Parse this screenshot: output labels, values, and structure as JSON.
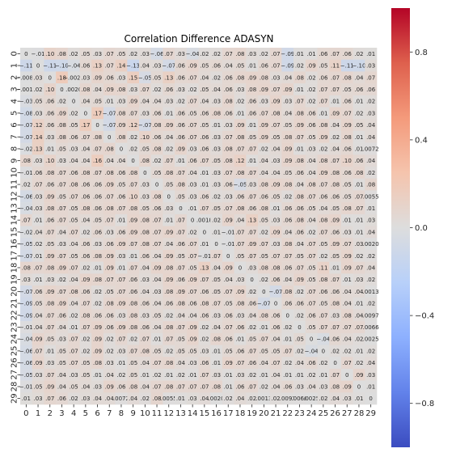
{
  "chart_data": {
    "type": "heatmap",
    "title": "Correlation Difference ADASYN",
    "xlabel": "",
    "ylabel": "",
    "x_categories": [
      "0",
      "1",
      "2",
      "3",
      "4",
      "5",
      "6",
      "7",
      "8",
      "9",
      "10",
      "11",
      "12",
      "13",
      "14",
      "15",
      "16",
      "17",
      "18",
      "19",
      "20",
      "21",
      "22",
      "23",
      "24",
      "25",
      "26",
      "27",
      "28",
      "29"
    ],
    "y_categories": [
      "0",
      "1",
      "2",
      "3",
      "4",
      "5",
      "6",
      "7",
      "8",
      "9",
      "10",
      "11",
      "12",
      "13",
      "14",
      "15",
      "16",
      "17",
      "18",
      "19",
      "20",
      "21",
      "22",
      "23",
      "24",
      "25",
      "26",
      "27",
      "28",
      "29"
    ],
    "color_range": [
      -1,
      1
    ],
    "colormap": "coolwarm",
    "colorbar_ticks": [
      -0.8,
      -0.4,
      0.0,
      0.4,
      0.8
    ],
    "colorbar_tick_labels": [
      "−0.8",
      "−0.4",
      "0.0",
      "0.4",
      "0.8"
    ],
    "cell_annotation_precision": 2,
    "values": [
      [
        0,
        -0.01,
        0.1,
        0.08,
        0.02,
        0.05,
        0.03,
        0.07,
        0.05,
        0.02,
        0.03,
        -0.06,
        0.07,
        0.03,
        -0.04,
        0.02,
        0.02,
        0.07,
        0.08,
        0.03,
        0.02,
        0.07,
        -0.09,
        0.01,
        0.01,
        0.06,
        0.07,
        0.06,
        0.02,
        0.014
      ],
      [
        -0.11,
        0,
        -0.11,
        -0.1,
        -0.04,
        0.06,
        0.13,
        0.07,
        0.14,
        -0.13,
        0.04,
        0.03,
        -0.07,
        0.06,
        0.09,
        0.05,
        0.06,
        0.04,
        0.05,
        0.01,
        0.06,
        0.07,
        -0.09,
        0.02,
        0.09,
        0.05,
        0.11,
        -0.11,
        -0.1,
        0.034
      ],
      [
        -0.008,
        0.03,
        0,
        0.18,
        -0.002,
        0.03,
        0.09,
        0.06,
        0.03,
        0.15,
        -0.05,
        0.05,
        0.13,
        0.06,
        0.07,
        0.04,
        0.02,
        0.06,
        0.08,
        0.09,
        0.08,
        0.03,
        0.04,
        0.08,
        0.02,
        0.06,
        0.07,
        0.08,
        0.04,
        0.075
      ],
      [
        -0.001,
        0.02,
        0.1,
        0,
        0.002,
        0.08,
        0.04,
        0.09,
        0.08,
        0.03,
        0.07,
        0.02,
        0.06,
        0.03,
        0.02,
        0.05,
        0.04,
        0.06,
        0.03,
        0.08,
        0.09,
        0.07,
        0.09,
        0.01,
        0.02,
        0.07,
        0.07,
        0.05,
        0.06,
        0.059
      ],
      [
        -0.03,
        0.05,
        0.06,
        0.02,
        0,
        0.04,
        0.05,
        0.01,
        0.03,
        0.09,
        0.04,
        0.04,
        0.03,
        0.02,
        0.07,
        0.04,
        0.03,
        0.08,
        0.02,
        0.06,
        0.03,
        0.09,
        0.03,
        0.07,
        0.02,
        0.07,
        0.01,
        0.06,
        0.01,
        0.02
      ],
      [
        -0.08,
        0.03,
        0.06,
        0.09,
        0.02,
        0,
        0.17,
        -0.07,
        0.08,
        0.07,
        0.03,
        0.06,
        0.01,
        0.06,
        0.05,
        0.06,
        0.08,
        0.06,
        0.01,
        0.06,
        0.07,
        0.08,
        0.04,
        0.08,
        0.06,
        0.01,
        0.09,
        0.07,
        0.02,
        0.031
      ],
      [
        -0.07,
        0.12,
        0.06,
        0.08,
        0.05,
        0.17,
        0,
        -0.07,
        0.09,
        0.12,
        -0.07,
        0.08,
        0.09,
        0.06,
        0.07,
        0.05,
        0.01,
        0.03,
        0.09,
        0.01,
        0.09,
        0.07,
        0.05,
        0.09,
        0.06,
        0.08,
        0.04,
        0.09,
        0.05,
        0.041
      ],
      [
        -0.07,
        0.14,
        0.03,
        0.08,
        0.06,
        0.07,
        0.08,
        0,
        0.08,
        0.02,
        0.1,
        0.06,
        0.04,
        0.06,
        0.07,
        0.06,
        0.03,
        0.07,
        0.08,
        0.05,
        0.09,
        0.05,
        0.08,
        0.07,
        0.05,
        0.09,
        0.02,
        0.08,
        0.01,
        0.04
      ],
      [
        -0.02,
        0.13,
        0.01,
        0.05,
        0.03,
        0.04,
        0.07,
        0.08,
        0,
        0.02,
        0.05,
        0.08,
        0.02,
        0.09,
        0.03,
        0.06,
        0.03,
        0.08,
        0.07,
        0.07,
        0.02,
        0.04,
        0.09,
        0.01,
        0.03,
        0.02,
        0.04,
        0.06,
        0.01,
        0.0072
      ],
      [
        0.08,
        0.03,
        0.1,
        0.03,
        0.04,
        0.04,
        0.16,
        0.04,
        0.04,
        0,
        0.08,
        0.02,
        0.07,
        0.01,
        0.06,
        0.07,
        0.05,
        0.08,
        0.12,
        0.01,
        0.04,
        0.03,
        0.09,
        0.08,
        0.04,
        0.08,
        0.07,
        0.1,
        0.06,
        0.039
      ],
      [
        -0.01,
        0.06,
        0.08,
        0.07,
        0.06,
        0.08,
        0.07,
        0.08,
        0.06,
        0.08,
        0,
        0.05,
        0.08,
        0.07,
        0.04,
        0.01,
        0.03,
        0.07,
        0.08,
        0.07,
        0.04,
        0.04,
        0.05,
        0.06,
        0.04,
        0.09,
        0.08,
        0.06,
        0.08,
        0.017
      ],
      [
        0.02,
        0.07,
        0.06,
        0.07,
        0.08,
        0.06,
        0.06,
        0.09,
        0.05,
        0.07,
        0.03,
        0,
        0.05,
        0.08,
        0.03,
        0.01,
        0.03,
        0.06,
        -0.05,
        0.03,
        0.08,
        0.09,
        0.08,
        0.04,
        0.08,
        0.07,
        0.08,
        0.05,
        0.01,
        0.078
      ],
      [
        -0.06,
        0.03,
        0.09,
        0.05,
        0.07,
        0.06,
        0.06,
        0.07,
        0.06,
        0.1,
        0.03,
        0.08,
        0,
        0.05,
        0.03,
        0.06,
        0.02,
        0.03,
        0.06,
        0.07,
        0.06,
        0.05,
        0.02,
        0.08,
        0.07,
        0.06,
        0.06,
        0.05,
        0.07,
        0.0055
      ],
      [
        -0.04,
        0.03,
        0.08,
        0.07,
        0.05,
        0.08,
        0.06,
        0.08,
        0.07,
        0.08,
        0.05,
        0.06,
        0.03,
        0,
        0.01,
        0.07,
        0.05,
        0.07,
        0.08,
        0.06,
        0.08,
        0.01,
        0.06,
        0.06,
        0.05,
        0.04,
        0.05,
        0.08,
        0.07,
        0.012
      ],
      [
        0.07,
        0.01,
        0.06,
        0.07,
        0.05,
        0.04,
        0.05,
        0.07,
        0.01,
        0.09,
        0.08,
        0.07,
        0.01,
        0.07,
        0,
        0.0018,
        0.02,
        0.09,
        0.04,
        0.13,
        0.05,
        0.03,
        0.06,
        0.08,
        0.04,
        0.08,
        0.09,
        0.01,
        0.01,
        0.025
      ],
      [
        -0.02,
        0.04,
        0.07,
        0.04,
        0.07,
        0.02,
        0.06,
        0.03,
        0.06,
        0.09,
        0.08,
        0.07,
        0.09,
        0.07,
        0.02,
        0,
        0.01,
        -0.01,
        0.07,
        0.07,
        0.02,
        0.09,
        0.04,
        0.06,
        0.02,
        0.07,
        0.06,
        0.03,
        0.01,
        0.038
      ],
      [
        -0.05,
        0.02,
        0.05,
        0.03,
        0.04,
        0.06,
        0.03,
        0.06,
        0.09,
        0.07,
        0.08,
        0.07,
        0.04,
        0.06,
        0.07,
        0.01,
        0,
        -0.01,
        0.07,
        0.09,
        0.07,
        0.03,
        0.08,
        0.04,
        0.07,
        0.05,
        0.09,
        0.07,
        0.03,
        0.002
      ],
      [
        -0.07,
        0.01,
        0.09,
        0.07,
        0.05,
        0.06,
        0.08,
        0.09,
        0.03,
        0.01,
        0.06,
        0.04,
        0.09,
        0.05,
        0.07,
        -0.01,
        0.07,
        0,
        0.05,
        0.07,
        0.05,
        0.07,
        0.07,
        0.05,
        0.07,
        0.02,
        0.05,
        0.09,
        0.02,
        0.016
      ],
      [
        0.08,
        0.07,
        0.08,
        0.09,
        0.07,
        0.02,
        0.01,
        0.09,
        0.01,
        0.07,
        0.04,
        0.09,
        0.08,
        0.07,
        0.05,
        0.13,
        0.04,
        0.09,
        0,
        0.03,
        0.08,
        0.08,
        0.06,
        0.07,
        0.05,
        0.11,
        0.01,
        0.09,
        0.07,
        0.043
      ],
      [
        0.03,
        0.01,
        0.03,
        0.02,
        0.04,
        0.09,
        0.08,
        0.07,
        0.07,
        0.06,
        0.03,
        0.04,
        0.09,
        0.06,
        0.09,
        0.07,
        0.05,
        0.04,
        0.03,
        0,
        0.02,
        0.06,
        0.04,
        0.09,
        0.05,
        0.08,
        0.07,
        0.01,
        0.03,
        0.022
      ],
      [
        -0.07,
        0.06,
        0.09,
        0.07,
        0.08,
        0.06,
        0.02,
        0.05,
        0.07,
        0.06,
        0.04,
        0.03,
        0.08,
        0.09,
        0.07,
        0.06,
        0.05,
        0.07,
        0.09,
        0.02,
        0,
        -0.07,
        0.08,
        0.02,
        0.07,
        0.06,
        0.06,
        0.04,
        0.04,
        0.0013
      ],
      [
        -0.09,
        0.05,
        0.08,
        0.09,
        0.04,
        0.07,
        0.02,
        0.08,
        0.09,
        0.08,
        0.06,
        0.04,
        0.06,
        0.08,
        0.06,
        0.08,
        0.07,
        0.05,
        0.08,
        0.06,
        -0.07,
        0,
        0.06,
        0.06,
        0.07,
        0.05,
        0.08,
        0.04,
        0.01,
        0.019
      ],
      [
        -0.09,
        0.04,
        0.07,
        0.06,
        0.02,
        0.08,
        0.06,
        0.06,
        0.03,
        0.08,
        0.03,
        0.05,
        0.02,
        0.04,
        0.04,
        0.06,
        0.03,
        0.06,
        0.03,
        0.04,
        0.08,
        0.06,
        0,
        0.02,
        0.06,
        0.07,
        0.03,
        0.08,
        0.04,
        0.0097
      ],
      [
        -0.01,
        0.04,
        0.07,
        0.04,
        0.01,
        0.07,
        0.09,
        0.06,
        0.09,
        0.08,
        0.06,
        0.04,
        0.08,
        0.07,
        0.09,
        0.02,
        0.04,
        0.07,
        0.06,
        0.02,
        0.01,
        0.06,
        0.02,
        0,
        0.05,
        0.07,
        0.07,
        0.07,
        0.07,
        0.0066
      ],
      [
        -0.04,
        0.09,
        0.05,
        0.03,
        0.07,
        0.02,
        0.09,
        0.02,
        0.07,
        0.02,
        0.07,
        0.01,
        0.07,
        0.05,
        0.09,
        0.02,
        0.08,
        0.06,
        0.01,
        0.05,
        0.07,
        0.04,
        0.01,
        0.05,
        0,
        -0.04,
        0.06,
        0.04,
        0.02,
        0.0025
      ],
      [
        -0.06,
        0.07,
        0.01,
        0.05,
        0.07,
        0.02,
        0.09,
        0.02,
        0.03,
        0.07,
        0.08,
        0.05,
        0.02,
        0.05,
        0.05,
        0.03,
        0.01,
        0.05,
        0.06,
        0.07,
        0.05,
        0.05,
        0.07,
        0.02,
        -0.04,
        0,
        0.02,
        0.02,
        0.01,
        0.02
      ],
      [
        -0.06,
        0.09,
        0.03,
        0.05,
        0.07,
        0.05,
        0.08,
        0.03,
        0.01,
        0.05,
        0.04,
        0.07,
        0.08,
        0.04,
        0.03,
        0.06,
        0.01,
        0.09,
        0.07,
        0.06,
        0.04,
        0.07,
        0.02,
        0.04,
        0.06,
        0.02,
        0,
        0.07,
        0.02,
        0.037
      ],
      [
        -0.05,
        0.03,
        0.07,
        0.04,
        0.03,
        0.05,
        0.01,
        0.04,
        0.02,
        0.05,
        0.01,
        0.02,
        0.01,
        0.02,
        0.01,
        0.07,
        0.03,
        0.01,
        0.03,
        0.02,
        0.01,
        0.04,
        0.01,
        0.01,
        0.02,
        0.01,
        0.07,
        0,
        0.09,
        0.033
      ],
      [
        -0.01,
        0.05,
        0.09,
        0.04,
        0.05,
        0.04,
        0.03,
        0.09,
        0.06,
        0.08,
        0.04,
        0.07,
        0.08,
        0.07,
        0.07,
        0.07,
        0.08,
        0.01,
        0.06,
        0.07,
        0.02,
        0.04,
        0.06,
        0.03,
        0.04,
        0.03,
        0.08,
        0.09,
        0,
        0.011
      ],
      [
        0.014,
        0.034,
        0.075,
        0.059,
        0.02,
        0.031,
        0.041,
        0.04,
        0.0072,
        0.039,
        0.017,
        0.078,
        0.0055,
        0.012,
        0.025,
        0.038,
        0.002,
        0.016,
        0.043,
        0.022,
        0.0013,
        0.019,
        0.0097,
        0.0066,
        0.0025,
        0.02,
        0.037,
        0.033,
        0.011,
        0
      ]
    ],
    "legend": "colorbar-right",
    "grid": false
  }
}
